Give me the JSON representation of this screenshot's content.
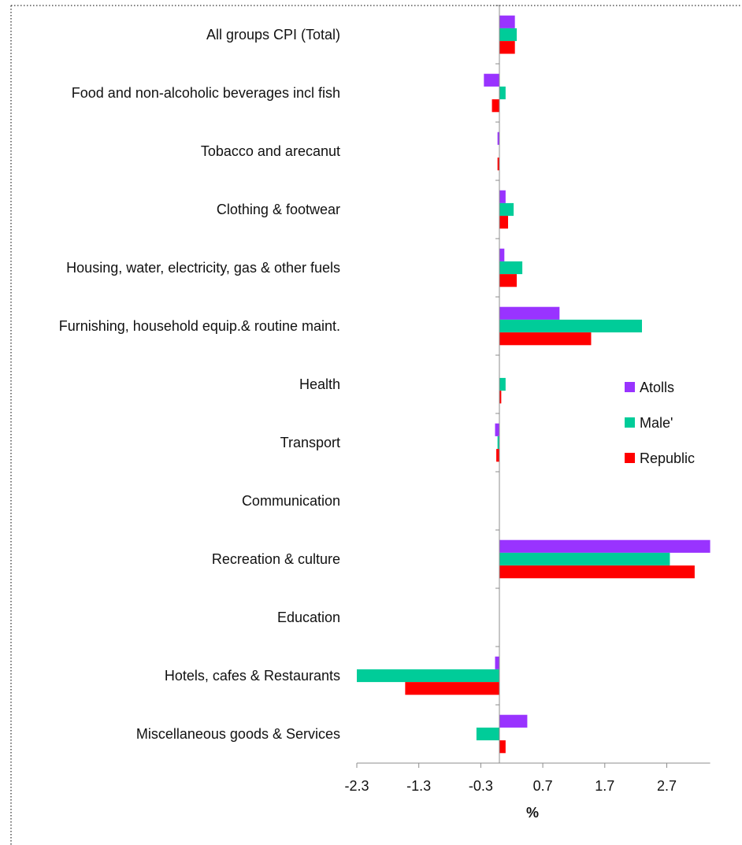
{
  "chart_data": {
    "type": "bar",
    "orientation": "horizontal",
    "categories": [
      "All groups CPI (Total)",
      "Food and non-alcoholic beverages incl fish",
      "Tobacco and arecanut",
      "Clothing & footwear",
      "Housing, water, electricity, gas & other fuels",
      "Furnishing, household equip.& routine maint.",
      "Health",
      "Transport",
      "Communication",
      "Recreation & culture",
      "Education",
      "Hotels, cafes & Restaurants",
      "Miscellaneous goods & Services"
    ],
    "series": [
      {
        "name": "Atolls",
        "color": "#9933ff",
        "values": [
          0.25,
          -0.25,
          -0.03,
          0.1,
          0.08,
          0.97,
          0.0,
          -0.07,
          0.0,
          3.4,
          0.0,
          -0.07,
          0.45
        ]
      },
      {
        "name": "Male'",
        "color": "#00cc99",
        "values": [
          0.28,
          0.1,
          0.0,
          0.23,
          0.37,
          2.3,
          0.1,
          -0.03,
          0.0,
          2.75,
          0.0,
          -2.3,
          -0.37
        ]
      },
      {
        "name": "Republic",
        "color": "#ff0000",
        "values": [
          0.25,
          -0.12,
          -0.03,
          0.14,
          0.28,
          1.48,
          0.03,
          -0.05,
          0.0,
          3.15,
          0.0,
          -1.52,
          0.1
        ]
      }
    ],
    "xlabel": "%",
    "ylabel": "",
    "xlim": [
      -2.3,
      3.4
    ],
    "xticks": [
      "-2.3",
      "-1.3",
      "-0.3",
      "0.7",
      "1.7",
      "2.7"
    ],
    "legend_position": "right",
    "grid": false
  }
}
